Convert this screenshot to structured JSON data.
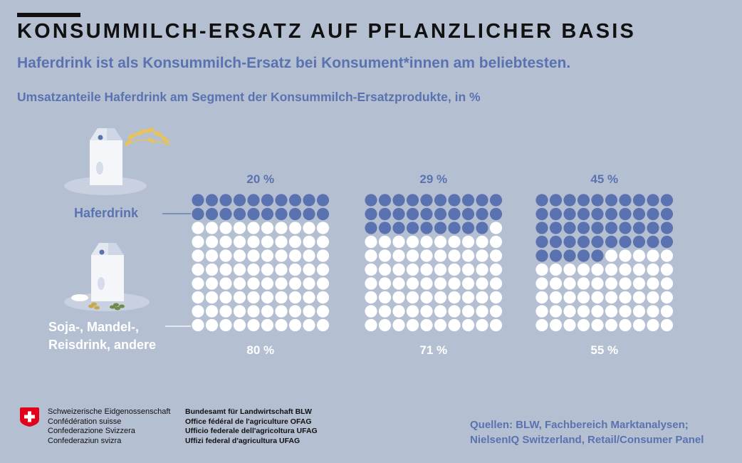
{
  "header": {
    "title": "KONSUMMILCH-ERSATZ AUF PFLANZLICHER BASIS",
    "subtitle": "Haferdrink ist als Konsummilch-Ersatz bei Konsument*innen am beliebtesten.",
    "chart_subtitle": "Umsatzanteile Haferdrink am Segment der Konsummilch-Ersatzprodukte, in %"
  },
  "labels": {
    "hafer": "Haferdrink",
    "other_line1": "Soja-, Mandel-,",
    "other_line2": "Reisdrink, andere"
  },
  "chart_data": {
    "type": "waffle",
    "unit": "%",
    "grid": {
      "rows": 10,
      "cols": 10
    },
    "categories": [
      "",
      "",
      ""
    ],
    "series": [
      {
        "name": "Haferdrink",
        "values": [
          20,
          29,
          45
        ]
      },
      {
        "name": "Soja-, Mandel-, Reisdrink, andere",
        "values": [
          80,
          71,
          55
        ]
      }
    ],
    "top_labels": [
      "20 %",
      "29 %",
      "45 %"
    ],
    "bottom_labels": [
      "80 %",
      "71 %",
      "55 %"
    ],
    "colors": {
      "hafer": "#5a73b0",
      "other": "#ffffff",
      "label": "#5a73b0"
    }
  },
  "footer": {
    "federation": [
      "Schweizerische Eidgenossenschaft",
      "Confédération suisse",
      "Confederazione Svizzera",
      "Confederaziun svizra"
    ],
    "office": [
      "Bundesamt für Landwirtschaft BLW",
      "Office fédéral de l'agriculture OFAG",
      "Ufficio federale dell'agricoltura UFAG",
      "Uffizi federal d'agricultura UFAG"
    ],
    "sources_line1": "Quellen: BLW, Fachbereich Marktanalysen;",
    "sources_line2": "NielsenIQ Switzerland, Retail/Consumer Panel"
  }
}
